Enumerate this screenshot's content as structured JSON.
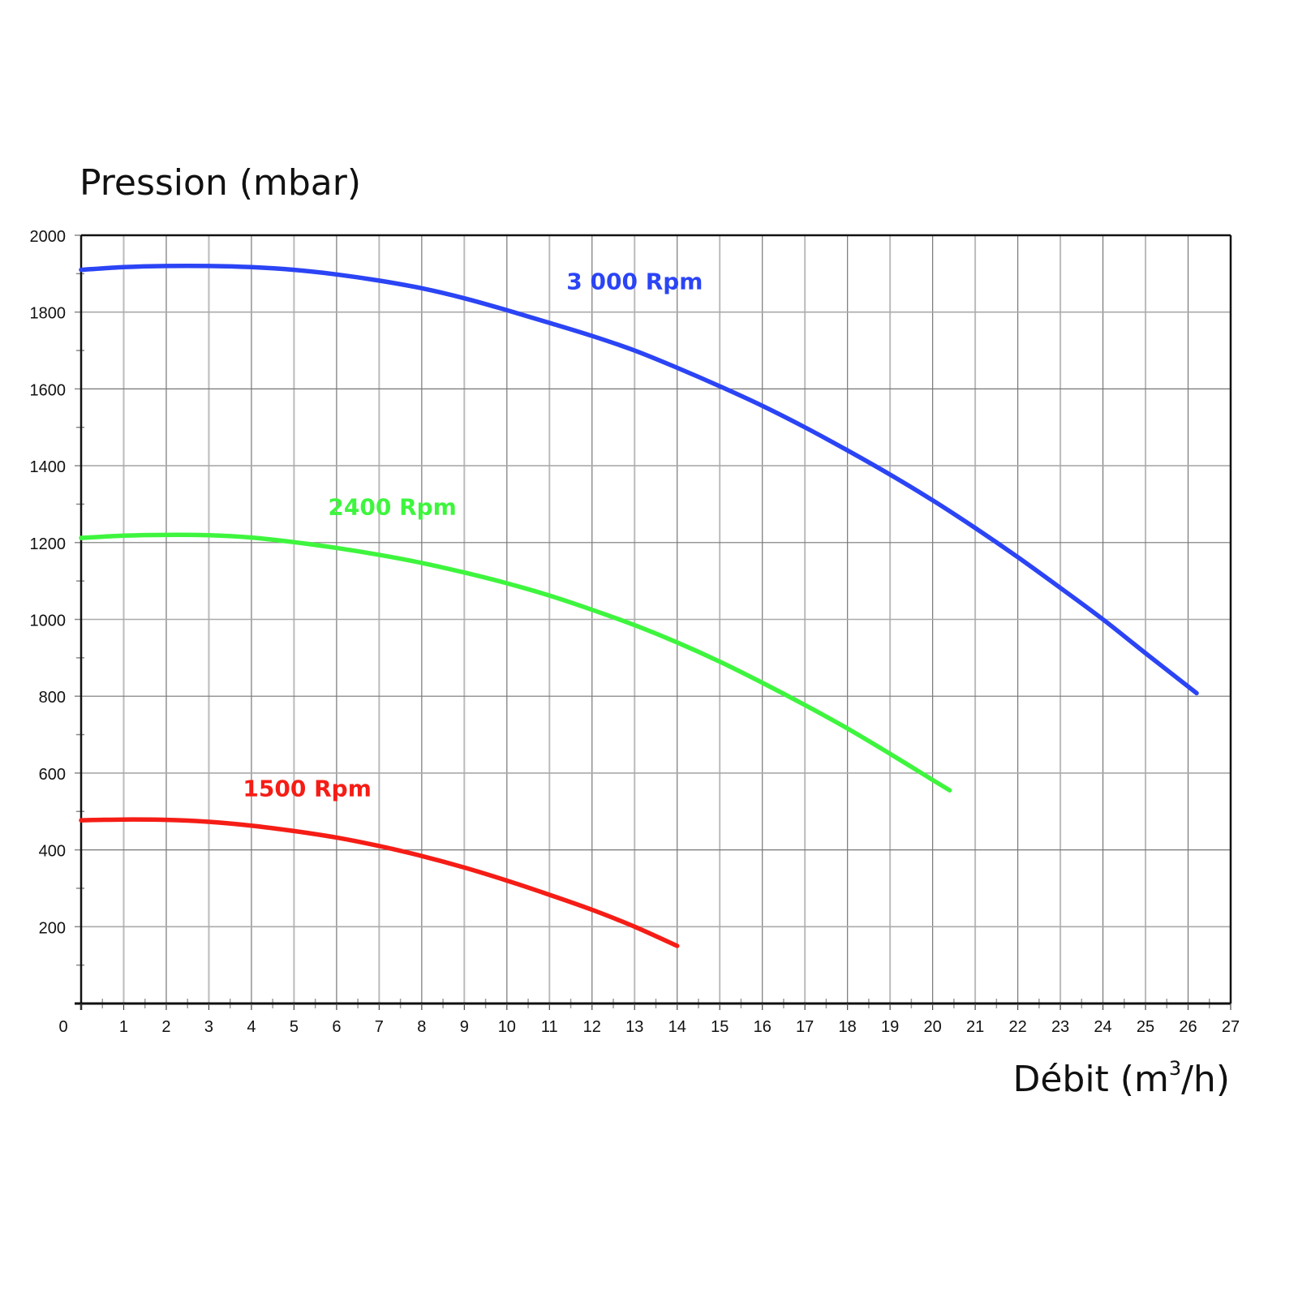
{
  "chart_data": {
    "type": "line",
    "title": "",
    "ylabel": "Pression (mbar)",
    "xlabel_main": "Débit (m",
    "xlabel_sup": "3",
    "xlabel_end": "/h)",
    "xlabel": "Débit (m³/h)",
    "xlim": [
      0,
      27
    ],
    "ylim": [
      0,
      2000
    ],
    "x_ticks": [
      0,
      1,
      2,
      3,
      4,
      5,
      6,
      7,
      8,
      9,
      10,
      11,
      12,
      13,
      14,
      15,
      16,
      17,
      18,
      19,
      20,
      21,
      22,
      23,
      24,
      25,
      26,
      27
    ],
    "y_ticks": [
      200,
      400,
      600,
      800,
      1000,
      1200,
      1400,
      1600,
      1800,
      2000
    ],
    "grid": true,
    "legend_position": "inline labels",
    "series": [
      {
        "name": "3 000 Rpm",
        "color": "#2b44f5",
        "label_pos": {
          "x": 11.4,
          "y": 1860
        },
        "points": [
          [
            0,
            1910
          ],
          [
            1,
            1917
          ],
          [
            2,
            1920
          ],
          [
            3,
            1920
          ],
          [
            4,
            1917
          ],
          [
            5,
            1910
          ],
          [
            6,
            1898
          ],
          [
            7,
            1882
          ],
          [
            8,
            1862
          ],
          [
            9,
            1836
          ],
          [
            10,
            1805
          ],
          [
            11,
            1772
          ],
          [
            12,
            1738
          ],
          [
            13,
            1700
          ],
          [
            14,
            1655
          ],
          [
            15,
            1607
          ],
          [
            16,
            1556
          ],
          [
            17,
            1500
          ],
          [
            18,
            1440
          ],
          [
            19,
            1377
          ],
          [
            20,
            1310
          ],
          [
            21,
            1238
          ],
          [
            22,
            1162
          ],
          [
            23,
            1082
          ],
          [
            24,
            1000
          ],
          [
            25,
            912
          ],
          [
            26.2,
            808
          ]
        ]
      },
      {
        "name": "2400 Rpm",
        "color": "#3ef53e",
        "label_pos": {
          "x": 5.8,
          "y": 1272
        },
        "points": [
          [
            0,
            1212
          ],
          [
            1,
            1218
          ],
          [
            2,
            1220
          ],
          [
            3,
            1219
          ],
          [
            4,
            1213
          ],
          [
            5,
            1201
          ],
          [
            6,
            1186
          ],
          [
            7,
            1168
          ],
          [
            8,
            1147
          ],
          [
            9,
            1122
          ],
          [
            10,
            1094
          ],
          [
            11,
            1062
          ],
          [
            12,
            1025
          ],
          [
            13,
            985
          ],
          [
            14,
            940
          ],
          [
            15,
            890
          ],
          [
            16,
            835
          ],
          [
            17,
            777
          ],
          [
            18,
            716
          ],
          [
            19,
            650
          ],
          [
            20,
            582
          ],
          [
            20.4,
            555
          ]
        ]
      },
      {
        "name": "1500 Rpm",
        "color": "#f51d16",
        "label_pos": {
          "x": 3.8,
          "y": 540
        },
        "points": [
          [
            0,
            477
          ],
          [
            1,
            479
          ],
          [
            2,
            478
          ],
          [
            3,
            473
          ],
          [
            4,
            463
          ],
          [
            5,
            449
          ],
          [
            6,
            432
          ],
          [
            7,
            410
          ],
          [
            8,
            384
          ],
          [
            9,
            354
          ],
          [
            10,
            320
          ],
          [
            11,
            283
          ],
          [
            12,
            244
          ],
          [
            13,
            200
          ],
          [
            14,
            150
          ]
        ]
      }
    ]
  }
}
